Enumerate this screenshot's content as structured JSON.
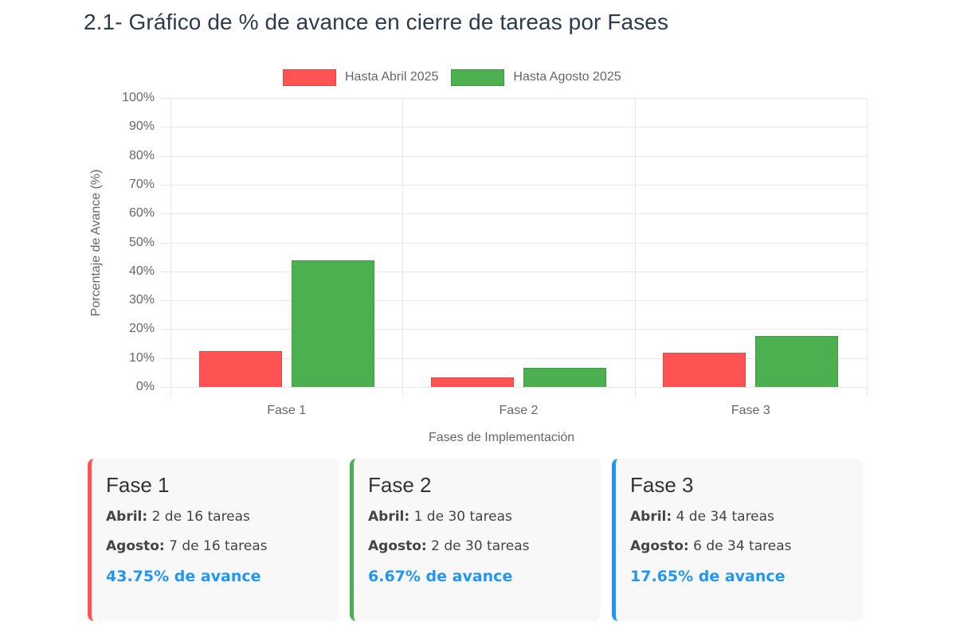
{
  "title": "2.1- Gráfico de % de avance en cierre de tareas por Fases",
  "chart_data": {
    "type": "bar",
    "title": "",
    "xlabel": "Fases de Implementación",
    "ylabel": "Porcentaje de Avance (%)",
    "ylim": [
      0,
      100
    ],
    "yticks": [
      "0%",
      "10%",
      "20%",
      "30%",
      "40%",
      "50%",
      "60%",
      "70%",
      "80%",
      "90%",
      "100%"
    ],
    "categories": [
      "Fase 1",
      "Fase 2",
      "Fase 3"
    ],
    "series": [
      {
        "name": "Hasta Abril 2025",
        "color": "#ff5252",
        "values": [
          12.5,
          3.33,
          11.76
        ]
      },
      {
        "name": "Hasta Agosto 2025",
        "color": "#4caf50",
        "values": [
          43.75,
          6.67,
          17.65
        ]
      }
    ],
    "grid": true,
    "legend_position": "top"
  },
  "legend": [
    {
      "label": "Hasta Abril 2025",
      "color": "#ff5252",
      "border": "#e04848"
    },
    {
      "label": "Hasta Agosto 2025",
      "color": "#4caf50",
      "border": "#3e9a42"
    }
  ],
  "cards": [
    {
      "title": "Fase 1",
      "accent": "#ff5252",
      "abril_label": "Abril:",
      "abril_value": " 2 de 16 tareas",
      "agosto_label": "Agosto:",
      "agosto_value": " 7 de 16 tareas",
      "progress": "43.75% de avance"
    },
    {
      "title": "Fase 2",
      "accent": "#4caf50",
      "abril_label": "Abril:",
      "abril_value": " 1 de 30 tareas",
      "agosto_label": "Agosto:",
      "agosto_value": " 2 de 30 tareas",
      "progress": "6.67% de avance"
    },
    {
      "title": "Fase 3",
      "accent": "#2196f3",
      "abril_label": "Abril:",
      "abril_value": " 4 de 34 tareas",
      "agosto_label": "Agosto:",
      "agosto_value": " 6 de 34 tareas",
      "progress": "17.65% de avance"
    }
  ]
}
